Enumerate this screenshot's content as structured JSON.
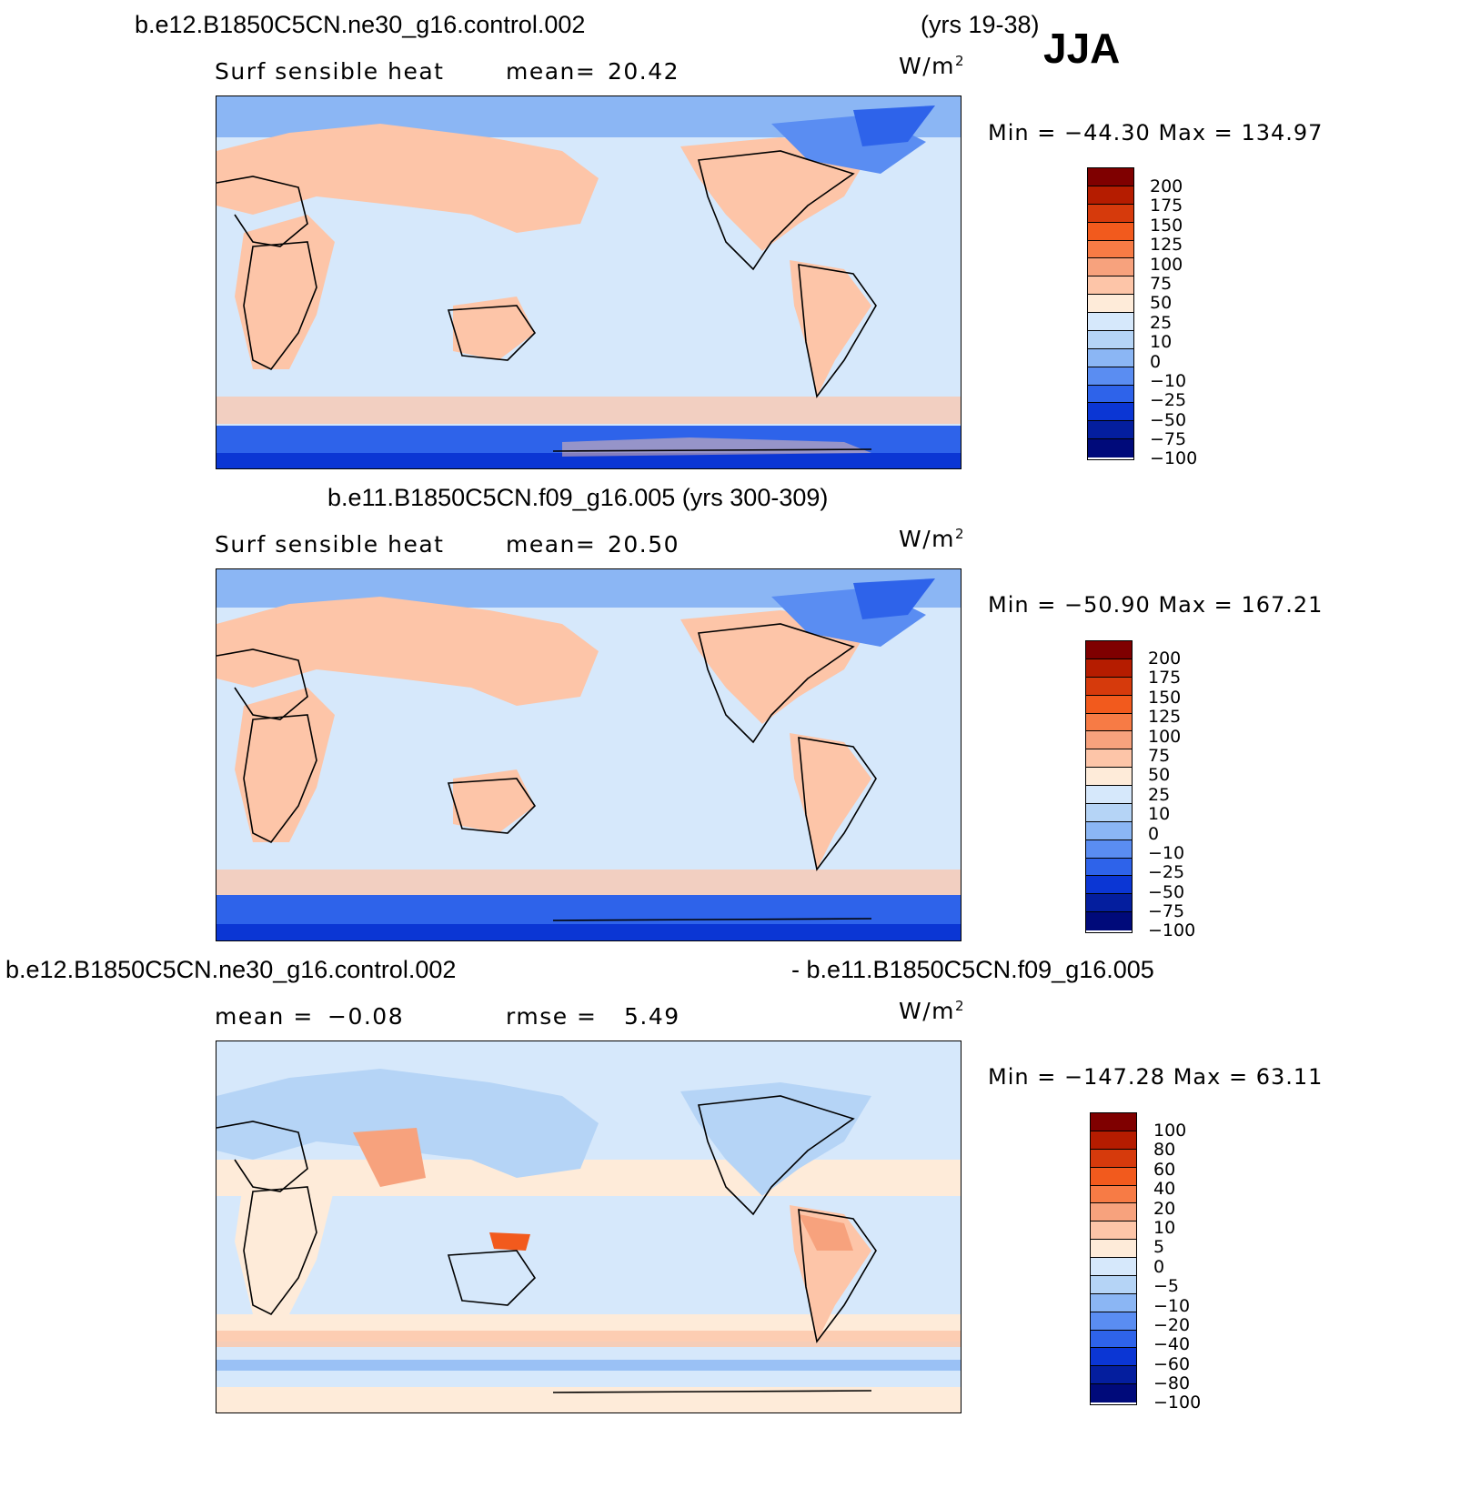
{
  "season": "JJA",
  "panel1": {
    "case_title": "b.e12.B1850C5CN.ne30_g16.control.002",
    "years": "(yrs 19-38)",
    "variable": "Surf  sensible  heat",
    "stat_label": "mean=",
    "stat_value": "20.42",
    "units_base": "W/m",
    "units_exp": "2",
    "min_label": "Min  =",
    "min_value": "−44.30",
    "max_label": "Max  =",
    "max_value": "134.97"
  },
  "panel2": {
    "case_title": "b.e11.B1850C5CN.f09_g16.005 (yrs 300-309)",
    "variable": "Surf  sensible  heat",
    "stat_label": "mean=",
    "stat_value": "20.50",
    "units_base": "W/m",
    "units_exp": "2",
    "min_label": "Min  =",
    "min_value": "−50.90",
    "max_label": "Max  =",
    "max_value": "167.21"
  },
  "panel3": {
    "case_title_left": "b.e12.B1850C5CN.ne30_g16.control.002",
    "case_title_right": "- b.e11.B1850C5CN.f09_g16.005",
    "mean_label": "mean  =",
    "mean_value": "−0.08",
    "rmse_label": "rmse  =",
    "rmse_value": "5.49",
    "units_base": "W/m",
    "units_exp": "2",
    "min_label": "Min  =",
    "min_value": "−147.28",
    "max_label": "Max  =",
    "max_value": "63.11"
  },
  "colorbar_abs": {
    "labels": [
      "200",
      "175",
      "150",
      "125",
      "100",
      "75",
      "50",
      "25",
      "10",
      "0",
      "−10",
      "−25",
      "−50",
      "−75",
      "−100"
    ],
    "colors": [
      "#7f0000",
      "#b51c00",
      "#d63a0c",
      "#f25a1d",
      "#f77b45",
      "#f7a27d",
      "#fdc5a8",
      "#feebd9",
      "#d6e8fb",
      "#b5d4f6",
      "#8bb6f4",
      "#5a8df2",
      "#2e63ea",
      "#0b36d4",
      "#041e9e",
      "#000a7a"
    ]
  },
  "colorbar_diff": {
    "labels": [
      "100",
      "80",
      "60",
      "40",
      "20",
      "10",
      "5",
      "0",
      "−5",
      "−10",
      "−20",
      "−40",
      "−60",
      "−80",
      "−100"
    ],
    "colors": [
      "#7f0000",
      "#b51c00",
      "#d63a0c",
      "#f25a1d",
      "#f77b45",
      "#f7a27d",
      "#fdc5a8",
      "#feebd9",
      "#d6e8fb",
      "#b5d4f6",
      "#8bb6f4",
      "#5a8df2",
      "#2e63ea",
      "#0b36d4",
      "#041e9e",
      "#000a7a"
    ]
  }
}
